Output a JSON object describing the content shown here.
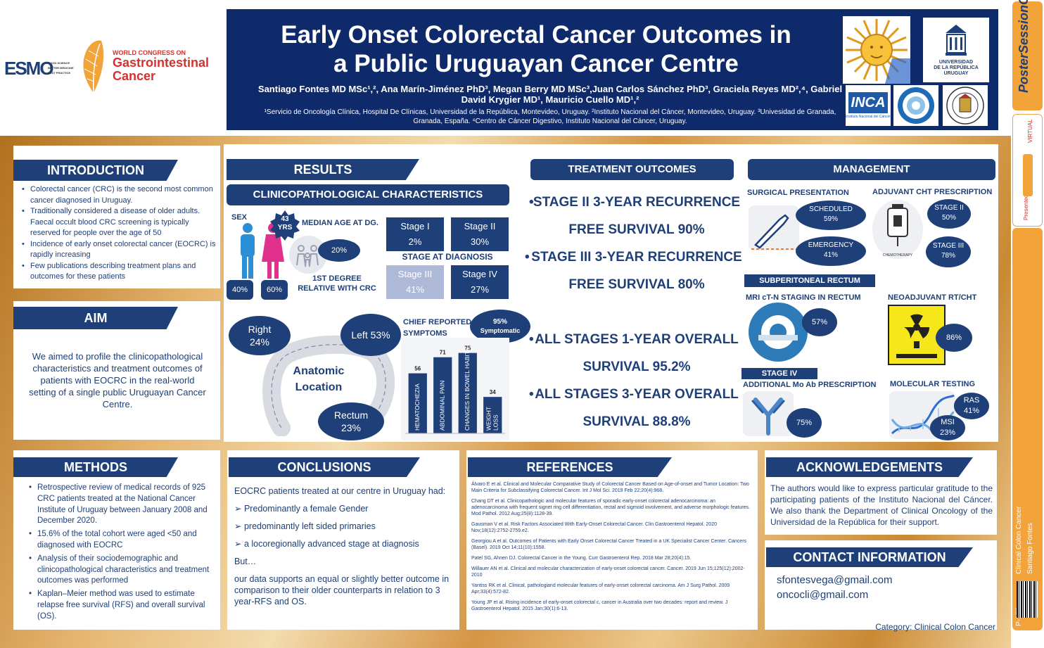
{
  "header": {
    "esmo_logo": "ESMO",
    "esmo_tagline": [
      "GOOD SCIENCE",
      "BETTER MEDICINE",
      "BEST PRACTICE"
    ],
    "congress_line1": "WORLD CONGRESS ON",
    "congress_line2": "Gastrointestinal",
    "congress_line3": "Cancer",
    "title_line1": "Early Onset Colorectal Cancer Outcomes in",
    "title_line2": "a Public Uruguayan Cancer Centre",
    "authors": "Santiago Fontes MD MSc¹,², Ana Marín-Jiménez PhD³, Megan Berry MD MSc³,Juan Carlos Sánchez PhD³, Graciela Reyes MD²,⁴, Gabriel David Krygier MD¹, Mauricio Cuello MD¹,²",
    "affiliations": "¹Servicio de Oncología Clínica, Hospital De Clínicas, Universidad de la República, Montevideo, Uruguay. ²Instituto Nacional del Cáncer, Montevideo, Uruguay. ³Univesidad de Granada, Granada, España. ⁴Centro de Cáncer Digestivo, Instituto Nacional del Cáncer, Uruguay.",
    "udelar_line1": "UNIVERSIDAD",
    "udelar_line2": "DE LA REPÚBLICA",
    "udelar_line3": "URUGUAY",
    "inca_logo": "INCA",
    "inca_sub": "Instituto Nacional del Cáncer"
  },
  "side": {
    "brand": "PosterSessionOnline",
    "virtual": "VIRTUAL",
    "presented_at": "Presented at:",
    "category_vertical": "Clinical Colon Cancer",
    "author_vertical": "Santiago Fontes",
    "poster_id": "P-177"
  },
  "introduction": {
    "heading": "INTRODUCTION",
    "bullets": [
      "Colorectal cancer (CRC) is the second most common cancer diagnosed in Uruguay.",
      "Traditionally considered a disease of older adults. Faecal occult blood CRC screening is typically reserved for people over the age of 50",
      "Incidence of early onset colorectal cancer (EOCRC) is rapidly increasing",
      "Few publications describing treatment plans and outcomes for these patients"
    ]
  },
  "aim": {
    "heading": "AIM",
    "text": "We aimed to profile the clinicopathological characteristics and treatment outcomes of patients with EOCRC in the real-world setting of a single public Uruguayan Cancer Centre."
  },
  "results": {
    "heading": "RESULTS",
    "subheading": "CLINICOPATHOLOGICAL CHARACTERISTICS",
    "sex_label": "SEX",
    "male_pct": "40%",
    "female_pct": "60%",
    "median_age_value": "43",
    "median_age_unit": "YRS",
    "median_age_label": "MEDIAN AGE AT DG.",
    "relative_pct": "20%",
    "relative_label": "1ST DEGREE RELATIVE WITH CRC",
    "stage_label": "STAGE AT  DIAGNOSIS",
    "stages": [
      {
        "name": "Stage I",
        "pct": "2%",
        "color": "#1e3f77"
      },
      {
        "name": "Stage II",
        "pct": "30%",
        "color": "#1e3f77"
      },
      {
        "name": "Stage III",
        "pct": "41%",
        "color": "#aeb9d8"
      },
      {
        "name": "Stage IV",
        "pct": "27%",
        "color": "#1e3f77"
      }
    ],
    "location_title_1": "Anatomic",
    "location_title_2": "Location",
    "loc_right_label": "Right",
    "loc_right_pct": "24%",
    "loc_left": "Left 53%",
    "loc_rectum_label": "Rectum",
    "loc_rectum_pct": "23%",
    "symptoms_label_1": "CHIEF REPORTED",
    "symptoms_label_2": "SYMPTOMS",
    "symptomatic_pct": "95%",
    "symptomatic_label": "Symptomatic"
  },
  "chart_data": {
    "type": "bar",
    "categories": [
      "HEMATOCHEZIA",
      "ABDOMINAL PAIN",
      "CHANGES IN BOWEL HABITS",
      "WEIGHT LOSS"
    ],
    "values": [
      56,
      71,
      75,
      34
    ],
    "ylim": [
      0,
      80
    ],
    "color": "#1e3f77"
  },
  "treatment": {
    "heading": "TREATMENT OUTCOMES",
    "items": [
      {
        "line1": "STAGE II 3-YEAR RECURRENCE",
        "line2": "FREE SURVIVAL 90%"
      },
      {
        "line1": "STAGE III 3-YEAR RECURRENCE",
        "line2": "FREE SURVIVAL 80%"
      },
      {
        "line1": "ALL STAGES 1-YEAR OVERALL",
        "line2": "SURVIVAL 95.2%"
      },
      {
        "line1": "ALL STAGES 3-YEAR OVERALL",
        "line2": "SURVIVAL 88.8%"
      }
    ]
  },
  "management": {
    "heading": "MANAGEMENT",
    "surgical_label": "SURGICAL PRESENTATION",
    "scheduled_label": "SCHEDULED",
    "scheduled_pct": "59%",
    "emergency_label": "EMERGENCY",
    "emergency_pct": "41%",
    "adjuvant_label": "ADJUVANT CHT PRESCRIPTION",
    "chemo_caption": "CHEMOTHERAPY",
    "adj_stage2_label": "STAGE II",
    "adj_stage2_pct": "50%",
    "adj_stage3_label": "STAGE III",
    "adj_stage3_pct": "78%",
    "subperitoneal_heading": "SUBPERITONEAL RECTUM",
    "mri_label": "MRI cT-N STAGING IN RECTUM",
    "mri_pct": "57%",
    "neo_label": "NEOADJUVANT RT/CHT",
    "neo_pct": "86%",
    "stage4_heading": "STAGE IV",
    "mab_label": "ADDITIONAL Mo Ab PRESCRIPTION",
    "mab_pct": "75%",
    "molecular_label": "MOLECULAR TESTING",
    "ras_label": "RAS",
    "ras_pct": "41%",
    "msi_label": "MSI",
    "msi_pct": "23%"
  },
  "methods": {
    "heading": "METHODS",
    "bullets": [
      "Retrospective review of medical records of 925 CRC patients treated at the National Cancer Institute of Uruguay between January 2008 and December 2020.",
      "15.6% of the total cohort were aged <50 and diagnosed with EOCRC",
      "Analysis of their sociodemographic and clinicopathological characteristics and treatment outcomes was performed",
      "Kaplan–Meier method was used to estimate relapse free survival (RFS) and overall survival (OS)."
    ]
  },
  "conclusions": {
    "heading": "CONCLUSIONS",
    "intro": "EOCRC patients treated at our centre in Uruguay had:",
    "points": [
      "Predominantly a female Gender",
      "predominantly left sided primaries",
      "a locoregionally advanced stage at diagnosis"
    ],
    "but": "But…",
    "closing": "our data supports an equal or slightly better outcome in comparison to their older counterparts in relation to 3 year-RFS and  OS."
  },
  "references": {
    "heading": "REFERENCES",
    "items": [
      "Álvaro E et al. Clinical and Molecular Comparative Study of Colorectal Cancer Based on Age-of-onset and Tumor Location: Two Main Criteria for Subclassifying Colorectal Cancer. Int J Mol Sci. 2019 Feb 22;20(4):968.",
      "Chang DT et al. Clinicopathologic and molecular features of sporadic early-onset colorectal adenocarcinoma: an adenocarcinoma with frequent signet ring cell differentiation, rectal and sigmoid involvement, and adverse morphologic features. Mod Pathol. 2012 Aug;25(8):1128-39.",
      "Gausman V et al. Risk Factors Associated With Early-Onset Colorectal Cancer. Clin Gastroenterol Hepatol. 2020 Nov;18(12):2752-2759.e2.",
      "Georgiou A et al. Outcomes of Patients with Early Onset Colorectal Cancer Treated in a UK Specialist Cancer Center. Cancers (Basel). 2019 Oct 14;11(10):1558.",
      "Patel SG, Ahnen DJ. Colorectal Cancer in the Young. Curr Gastroenterol Rep. 2018 Mar 28;20(4):15.",
      "Willauer AN et al. Clinical and molecular characterization of early-onset colorectal cancer. Cancer. 2019 Jun 15;125(12):2002-2010",
      "Yantiss RK et al. Clinical, pathologiand molecular features of early-onset colorectal carcinoma. Am J Surg Pathol. 2009 Apr;33(4):572-82.",
      "Young JP et al. Rising incidence of early-onset colorectal c, cancer in Australia over two decades: report and review. J Gastroenterol Hepatol. 2015 Jan;30(1):6-13."
    ]
  },
  "acknowledgements": {
    "heading": "ACKNOWLEDGEMENTS",
    "text": "The authors would like to express particular gratitude to the participating patients of the Instituto Nacional del Cáncer. We also thank the Department of Clinical Oncology of the Universidad de la República for their support."
  },
  "contact": {
    "heading": "CONTACT INFORMATION",
    "email1": "sfontesvega@gmail.com",
    "email2": "oncocli@gmail.com",
    "category": "Category: Clinical Colon Cancer"
  }
}
